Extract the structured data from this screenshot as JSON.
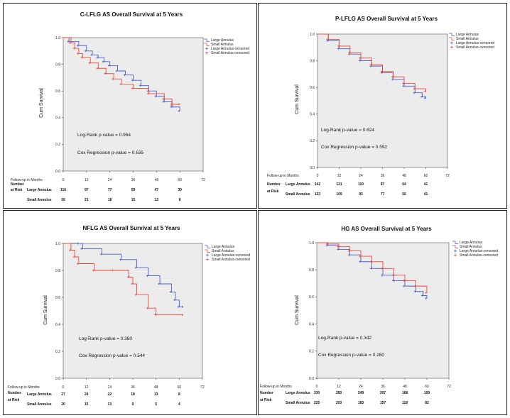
{
  "legend_labels": [
    "Large Annulus",
    "Small Annulus",
    "Large Annulus-censored",
    "Small Annulus-censored"
  ],
  "colors": {
    "large": "#4a5ec8",
    "small": "#ec4a3a",
    "plot_bg": "#ececec",
    "frame": "#555555"
  },
  "risk_header": {
    "number": "Number",
    "at_risk": "at Risk"
  },
  "chart_data": [
    {
      "type": "line",
      "title": "C-LFLG AS Overall Survival at 5 Years",
      "xlabel": "Follow-up in Months",
      "ylabel": "Cum Survival",
      "xlim": [
        0,
        72
      ],
      "ylim": [
        0,
        1
      ],
      "x_ticks": [
        "0",
        "12",
        "24",
        "36",
        "48",
        "60",
        "72"
      ],
      "y_ticks": [
        "0.0",
        "0.2",
        "0.4",
        "0.6",
        "0.8",
        "1.0"
      ],
      "stats": [
        "Log-Rank p-value = 0.964",
        "Cox Regression p-value = 0.635"
      ],
      "series": [
        {
          "name": "Large Annulus",
          "points": [
            [
              0,
              1.0
            ],
            [
              3,
              0.97
            ],
            [
              8,
              0.94
            ],
            [
              12,
              0.9
            ],
            [
              15,
              0.87
            ],
            [
              18,
              0.85
            ],
            [
              21,
              0.82
            ],
            [
              24,
              0.79
            ],
            [
              28,
              0.75
            ],
            [
              32,
              0.72
            ],
            [
              36,
              0.68
            ],
            [
              40,
              0.64
            ],
            [
              44,
              0.6
            ],
            [
              48,
              0.56
            ],
            [
              52,
              0.52
            ],
            [
              56,
              0.48
            ],
            [
              60,
              0.45
            ]
          ]
        },
        {
          "name": "Small Annulus",
          "points": [
            [
              0,
              1.0
            ],
            [
              4,
              0.96
            ],
            [
              6,
              0.92
            ],
            [
              8,
              0.88
            ],
            [
              10,
              0.85
            ],
            [
              14,
              0.81
            ],
            [
              18,
              0.77
            ],
            [
              22,
              0.73
            ],
            [
              26,
              0.69
            ],
            [
              30,
              0.65
            ],
            [
              36,
              0.62
            ],
            [
              44,
              0.58
            ],
            [
              52,
              0.54
            ],
            [
              56,
              0.5
            ],
            [
              60,
              0.5
            ]
          ]
        }
      ],
      "risk_table": {
        "x_header": "Follow-up in Months",
        "rows": [
          {
            "label": "Large Annulus",
            "values": [
              "110",
              "97",
              "77",
              "59",
              "47",
              "30"
            ]
          },
          {
            "label": "Small Annulus",
            "values": [
              "26",
              "21",
              "18",
              "15",
              "12",
              "8"
            ]
          }
        ]
      }
    },
    {
      "type": "line",
      "title": "P-LFLG AS Overall Survival at 5 Years",
      "xlabel": "Follow-up in Months",
      "ylabel": "Cum Survival",
      "xlim": [
        0,
        72
      ],
      "ylim": [
        0,
        1
      ],
      "x_ticks": [
        "0",
        "12",
        "24",
        "36",
        "48",
        "60",
        "72"
      ],
      "y_ticks": [
        "0.0",
        "0.2",
        "0.4",
        "0.6",
        "0.8",
        "1.0"
      ],
      "stats": [
        "Log-Rank p-value = 0.624",
        "Cox Regression p-value = 0.592"
      ],
      "series": [
        {
          "name": "Large Annulus",
          "points": [
            [
              0,
              1.0
            ],
            [
              6,
              0.95
            ],
            [
              12,
              0.89
            ],
            [
              18,
              0.85
            ],
            [
              24,
              0.8
            ],
            [
              30,
              0.76
            ],
            [
              36,
              0.71
            ],
            [
              42,
              0.66
            ],
            [
              48,
              0.61
            ],
            [
              54,
              0.56
            ],
            [
              58,
              0.53
            ],
            [
              60,
              0.52
            ]
          ]
        },
        {
          "name": "Small Annulus",
          "points": [
            [
              0,
              1.0
            ],
            [
              6,
              0.96
            ],
            [
              12,
              0.91
            ],
            [
              18,
              0.86
            ],
            [
              24,
              0.82
            ],
            [
              30,
              0.77
            ],
            [
              36,
              0.72
            ],
            [
              42,
              0.68
            ],
            [
              48,
              0.63
            ],
            [
              54,
              0.59
            ],
            [
              60,
              0.57
            ]
          ]
        }
      ],
      "risk_table": {
        "x_header": "Follow-up in Months",
        "rows": [
          {
            "label": "Large Annulus",
            "values": [
              "142",
              "121",
              "110",
              "87",
              "64",
              "41"
            ]
          },
          {
            "label": "Small Annulus",
            "values": [
              "123",
              "109",
              "93",
              "77",
              "56",
              "41"
            ]
          }
        ]
      }
    },
    {
      "type": "line",
      "title": "NFLG AS Overall Survival at 5 Years",
      "xlabel": "Follow-up in Months",
      "ylabel": "Cum Survival",
      "xlim": [
        0,
        72
      ],
      "ylim": [
        0,
        1
      ],
      "x_ticks": [
        "0",
        "12",
        "24",
        "36",
        "48",
        "60",
        "72"
      ],
      "y_ticks": [
        "0.0",
        "0.2",
        "0.4",
        "0.6",
        "0.8",
        "1.0"
      ],
      "stats": [
        "Log-Rank p-value = 0.380",
        "Cox Regression p-value = 0.544"
      ],
      "series": [
        {
          "name": "Large Annulus",
          "points": [
            [
              0,
              1.0
            ],
            [
              8,
              1.0
            ],
            [
              10,
              0.96
            ],
            [
              20,
              0.92
            ],
            [
              30,
              0.88
            ],
            [
              38,
              0.82
            ],
            [
              44,
              0.76
            ],
            [
              50,
              0.7
            ],
            [
              56,
              0.64
            ],
            [
              58,
              0.58
            ],
            [
              60,
              0.53
            ],
            [
              62,
              0.53
            ]
          ]
        },
        {
          "name": "Small Annulus",
          "points": [
            [
              0,
              1.0
            ],
            [
              4,
              0.95
            ],
            [
              6,
              0.9
            ],
            [
              8,
              0.85
            ],
            [
              16,
              0.8
            ],
            [
              26,
              0.8
            ],
            [
              34,
              0.75
            ],
            [
              36,
              0.7
            ],
            [
              38,
              0.62
            ],
            [
              44,
              0.52
            ],
            [
              48,
              0.47
            ],
            [
              62,
              0.47
            ]
          ]
        }
      ],
      "risk_table": {
        "x_header": "Follow-up in Months",
        "rows": [
          {
            "label": "Large Annulus",
            "values": [
              "27",
              "24",
              "22",
              "18",
              "13",
              "8"
            ]
          },
          {
            "label": "Small Annulus",
            "values": [
              "20",
              "15",
              "13",
              "9",
              "5",
              "4"
            ]
          }
        ]
      }
    },
    {
      "type": "line",
      "title": "HG AS Overall Survival at 5 Years",
      "xlabel": "Follow-up in Months",
      "ylabel": "Cum Survival",
      "xlim": [
        0,
        72
      ],
      "ylim": [
        0,
        1
      ],
      "x_ticks": [
        "0",
        "12",
        "24",
        "36",
        "48",
        "60",
        "72"
      ],
      "y_ticks": [
        "0.0",
        "0.2",
        "0.4",
        "0.6",
        "0.8",
        "1.0"
      ],
      "stats": [
        "Log-Rank p-value = 0.342",
        "Cox Regression p-value = 0.260"
      ],
      "series": [
        {
          "name": "Large Annulus",
          "points": [
            [
              0,
              1.0
            ],
            [
              6,
              0.98
            ],
            [
              12,
              0.95
            ],
            [
              18,
              0.91
            ],
            [
              24,
              0.86
            ],
            [
              30,
              0.81
            ],
            [
              36,
              0.76
            ],
            [
              42,
              0.72
            ],
            [
              48,
              0.68
            ],
            [
              54,
              0.64
            ],
            [
              58,
              0.61
            ],
            [
              60,
              0.59
            ]
          ]
        },
        {
          "name": "Small Annulus",
          "points": [
            [
              0,
              1.0
            ],
            [
              6,
              0.99
            ],
            [
              12,
              0.97
            ],
            [
              18,
              0.94
            ],
            [
              24,
              0.9
            ],
            [
              30,
              0.86
            ],
            [
              36,
              0.81
            ],
            [
              42,
              0.76
            ],
            [
              48,
              0.72
            ],
            [
              54,
              0.68
            ],
            [
              60,
              0.63
            ]
          ]
        }
      ],
      "risk_table": {
        "x_header": "Follow-up in Months",
        "rows": [
          {
            "label": "Large Annulus",
            "values": [
              "330",
              "283",
              "249",
              "207",
              "168",
              "109"
            ]
          },
          {
            "label": "Small Annulus",
            "values": [
              "225",
              "203",
              "183",
              "157",
              "118",
              "82"
            ]
          }
        ]
      }
    }
  ]
}
